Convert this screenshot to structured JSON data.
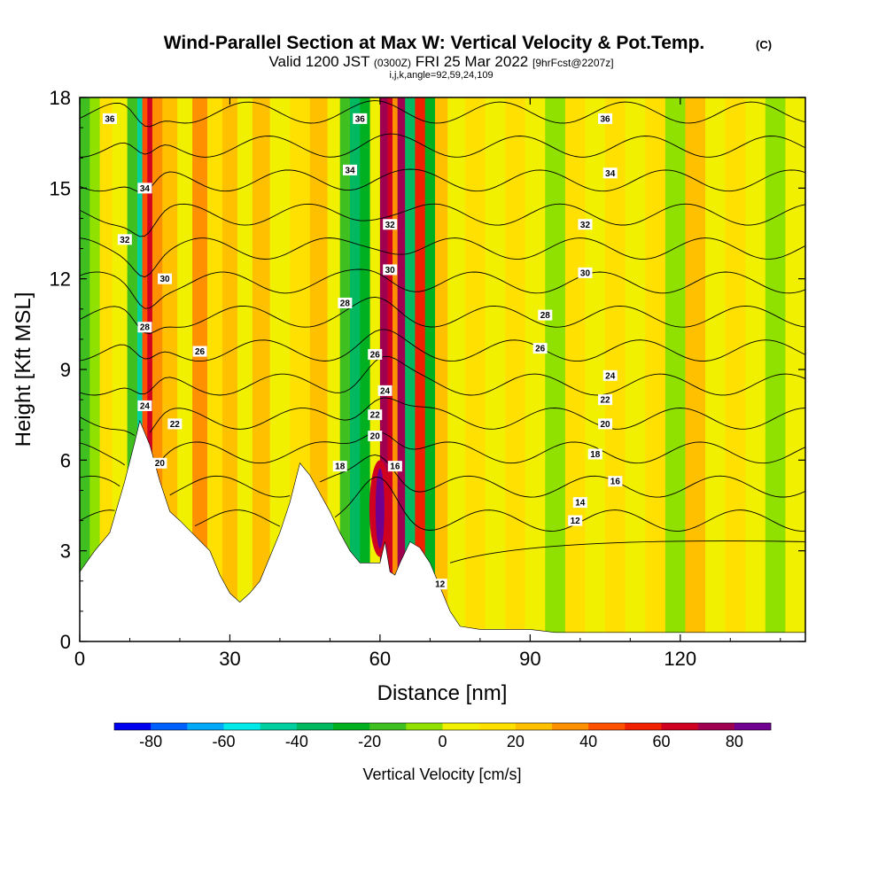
{
  "header": {
    "title": "Wind-Parallel Section at Max W: Vertical Velocity & Pot.Temp.",
    "copyright": "(C)",
    "valid_prefix": "Valid 1200 JST",
    "valid_utc": "(0300Z)",
    "valid_date": "FRI 25 Mar 2022",
    "forecast": "[9hrFcst@2207z]",
    "indices": "i,j,k,angle=92,59,24,109"
  },
  "chart_data": {
    "type": "heatmap",
    "xlabel": "Distance [nm]",
    "ylabel": "Height [Kft MSL]",
    "xlim": [
      0,
      145
    ],
    "ylim": [
      0,
      18
    ],
    "x_ticks": [
      0,
      30,
      60,
      90,
      120
    ],
    "y_ticks": [
      0,
      3,
      6,
      9,
      12,
      15,
      18
    ],
    "terrain_profile": {
      "x": [
        0,
        3,
        6,
        9,
        11,
        12,
        14,
        16,
        18,
        20,
        23,
        26,
        28,
        30,
        32,
        34,
        36,
        38,
        40,
        42,
        44,
        46,
        48,
        50,
        52,
        54,
        56,
        58,
        60,
        61,
        62,
        63,
        64,
        66,
        68,
        70,
        72,
        74,
        76,
        80,
        86,
        90,
        95,
        100,
        145
      ],
      "height": [
        2.3,
        3.0,
        3.6,
        5.3,
        6.6,
        7.3,
        6.5,
        5.3,
        4.3,
        4.0,
        3.5,
        3.0,
        2.2,
        1.6,
        1.3,
        1.6,
        2.0,
        2.8,
        3.6,
        4.6,
        5.9,
        5.5,
        4.9,
        4.3,
        3.6,
        3.0,
        2.6,
        2.6,
        2.6,
        3.3,
        2.3,
        2.2,
        2.6,
        3.3,
        3.1,
        2.6,
        1.8,
        1.0,
        0.5,
        0.4,
        0.4,
        0.4,
        0.3,
        0.3,
        0.3
      ]
    },
    "wv_columns": {
      "x": [
        1,
        3,
        5,
        8,
        11,
        12,
        13,
        14,
        15,
        18,
        21,
        24,
        27,
        30,
        33,
        36,
        40,
        44,
        48,
        51,
        53,
        55,
        57,
        59,
        61,
        62,
        63,
        64,
        66,
        68,
        70,
        72,
        75,
        79,
        83,
        87,
        91,
        95,
        99,
        103,
        107,
        111,
        115,
        119,
        123,
        127,
        131,
        135,
        139,
        143
      ],
      "w_cm_s": [
        -20,
        -10,
        10,
        0,
        -20,
        -50,
        40,
        60,
        30,
        20,
        0,
        30,
        10,
        20,
        0,
        20,
        0,
        10,
        20,
        0,
        -20,
        -40,
        -30,
        0,
        70,
        60,
        30,
        70,
        -40,
        50,
        -30,
        20,
        0,
        10,
        0,
        10,
        0,
        -10,
        10,
        0,
        10,
        0,
        10,
        -10,
        20,
        0,
        10,
        0,
        -10,
        0
      ]
    },
    "low_level_maximum": {
      "x": 60,
      "height_range": [
        2.8,
        6.0
      ],
      "w_cm_s": 90
    },
    "theta_contour_levels": [
      12,
      14,
      16,
      18,
      20,
      22,
      24,
      26,
      28,
      30,
      32,
      34,
      36
    ],
    "contour_labels": [
      {
        "x": 6,
        "height": 17.3,
        "text": "36"
      },
      {
        "x": 56,
        "height": 17.3,
        "text": "36"
      },
      {
        "x": 105,
        "height": 17.3,
        "text": "36"
      },
      {
        "x": 13,
        "height": 15.0,
        "text": "34"
      },
      {
        "x": 54,
        "height": 15.6,
        "text": "34"
      },
      {
        "x": 106,
        "height": 15.5,
        "text": "34"
      },
      {
        "x": 9,
        "height": 13.3,
        "text": "32"
      },
      {
        "x": 62,
        "height": 13.8,
        "text": "32"
      },
      {
        "x": 101,
        "height": 13.8,
        "text": "32"
      },
      {
        "x": 17,
        "height": 12.0,
        "text": "30"
      },
      {
        "x": 62,
        "height": 12.3,
        "text": "30"
      },
      {
        "x": 101,
        "height": 12.2,
        "text": "30"
      },
      {
        "x": 53,
        "height": 11.2,
        "text": "28"
      },
      {
        "x": 93,
        "height": 10.8,
        "text": "28"
      },
      {
        "x": 13,
        "height": 10.4,
        "text": "28"
      },
      {
        "x": 24,
        "height": 9.6,
        "text": "26"
      },
      {
        "x": 59,
        "height": 9.5,
        "text": "26"
      },
      {
        "x": 92,
        "height": 9.7,
        "text": "26"
      },
      {
        "x": 13,
        "height": 7.8,
        "text": "24"
      },
      {
        "x": 61,
        "height": 8.3,
        "text": "24"
      },
      {
        "x": 106,
        "height": 8.8,
        "text": "24"
      },
      {
        "x": 19,
        "height": 7.2,
        "text": "22"
      },
      {
        "x": 59,
        "height": 7.5,
        "text": "22"
      },
      {
        "x": 105,
        "height": 8.0,
        "text": "22"
      },
      {
        "x": 16,
        "height": 5.9,
        "text": "20"
      },
      {
        "x": 59,
        "height": 6.8,
        "text": "20"
      },
      {
        "x": 105,
        "height": 7.2,
        "text": "20"
      },
      {
        "x": 52,
        "height": 5.8,
        "text": "18"
      },
      {
        "x": 103,
        "height": 6.2,
        "text": "18"
      },
      {
        "x": 63,
        "height": 5.8,
        "text": "16"
      },
      {
        "x": 107,
        "height": 5.3,
        "text": "16"
      },
      {
        "x": 100,
        "height": 4.6,
        "text": "14"
      },
      {
        "x": 99,
        "height": 4.0,
        "text": "12"
      },
      {
        "x": 72,
        "height": 1.9,
        "text": "12"
      }
    ]
  },
  "colorbar": {
    "label": "Vertical Velocity [cm/s]",
    "bounds": [
      -90,
      -80,
      -70,
      -60,
      -50,
      -40,
      -30,
      -20,
      -10,
      0,
      10,
      20,
      30,
      40,
      50,
      60,
      70,
      80,
      90
    ],
    "colors": [
      "#0000f0",
      "#0060ff",
      "#00a8f8",
      "#00e8e8",
      "#00d0a0",
      "#00b860",
      "#00b020",
      "#40c020",
      "#90e000",
      "#f0f000",
      "#ffe000",
      "#ffc000",
      "#ff9000",
      "#ff5000",
      "#f02000",
      "#d00020",
      "#a00050",
      "#700090"
    ],
    "tick_values": [
      -80,
      -60,
      -40,
      -20,
      0,
      20,
      40,
      60,
      80
    ],
    "tick_labels": [
      "-80",
      "-60",
      "-40",
      "-20",
      "0",
      "20",
      "40",
      "60",
      "80"
    ]
  },
  "colors": {
    "contour": "#000000",
    "terrain": "#ffffff",
    "frame": "#000000"
  }
}
